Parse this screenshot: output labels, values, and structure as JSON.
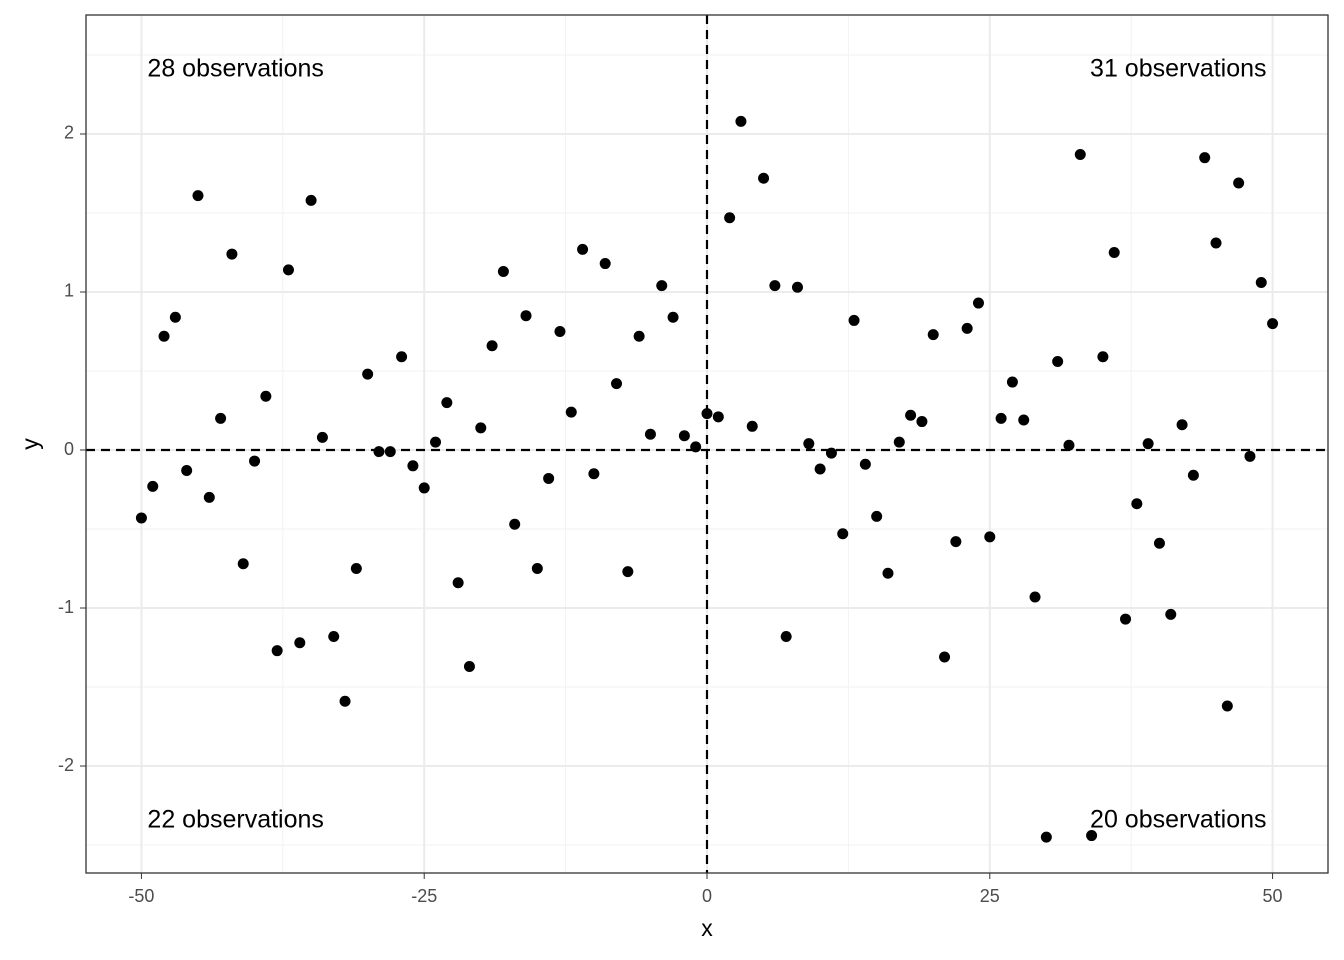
{
  "chart_data": {
    "type": "scatter",
    "x_label": "x",
    "y_label": "y",
    "x": [
      -50,
      -49,
      -48,
      -47,
      -46,
      -45,
      -44,
      -43,
      -42,
      -41,
      -40,
      -39,
      -38,
      -37,
      -36,
      -35,
      -34,
      -33,
      -32,
      -31,
      -30,
      -29,
      -28,
      -27,
      -26,
      -25,
      -24,
      -23,
      -22,
      -21,
      -20,
      -19,
      -18,
      -17,
      -16,
      -15,
      -14,
      -13,
      -12,
      -11,
      -10,
      -9,
      -8,
      -7,
      -6,
      -5,
      -4,
      -3,
      -2,
      -1,
      0,
      1,
      2,
      3,
      4,
      5,
      6,
      7,
      8,
      9,
      10,
      11,
      12,
      13,
      14,
      15,
      16,
      17,
      18,
      19,
      20,
      21,
      22,
      23,
      24,
      25,
      26,
      27,
      28,
      29,
      30,
      31,
      32,
      33,
      34,
      35,
      36,
      37,
      38,
      39,
      40,
      41,
      42,
      43,
      44,
      45,
      46,
      47,
      48,
      49,
      50
    ],
    "values": [
      -0.43,
      -0.23,
      0.72,
      0.84,
      -0.13,
      1.61,
      -0.3,
      0.2,
      1.24,
      -0.72,
      -0.07,
      0.34,
      -1.27,
      1.14,
      -1.22,
      1.58,
      0.08,
      -1.18,
      -1.59,
      -0.75,
      0.48,
      -0.01,
      -0.01,
      0.59,
      -0.1,
      -0.24,
      0.05,
      0.3,
      -0.84,
      -1.37,
      0.14,
      0.66,
      1.13,
      -0.47,
      0.85,
      -0.75,
      -0.18,
      0.75,
      0.24,
      1.27,
      -0.15,
      1.18,
      0.42,
      -0.77,
      0.72,
      0.1,
      1.04,
      0.84,
      0.09,
      0.02,
      0.23,
      0.21,
      1.47,
      2.08,
      0.15,
      1.72,
      1.04,
      -1.18,
      1.03,
      0.04,
      -0.12,
      -0.02,
      -0.53,
      0.82,
      -0.09,
      -0.42,
      -0.78,
      0.05,
      0.22,
      0.18,
      0.73,
      -1.31,
      -0.58,
      0.77,
      0.93,
      -0.55,
      0.2,
      0.43,
      0.19,
      -0.93,
      -2.45,
      0.56,
      0.03,
      1.87,
      -2.44,
      0.59,
      1.25,
      -1.07,
      -0.34,
      0.04,
      -0.59,
      -1.04,
      0.16,
      -0.16,
      1.85,
      1.31,
      -1.62,
      1.69,
      -0.04,
      1.06,
      0.8
    ],
    "color": "#000000",
    "xlim": [
      -54.9,
      54.9
    ],
    "ylim": [
      -2.677,
      2.753
    ],
    "xticks": [
      -50,
      -25,
      0,
      25,
      50
    ],
    "yticks": [
      -2,
      -1,
      0,
      1,
      2
    ],
    "grid": true,
    "minor_grid": true,
    "hline": 0,
    "vline": 0,
    "annotations": [
      {
        "text": "28 observations",
        "corner": "top-left"
      },
      {
        "text": "31 observations",
        "corner": "top-right"
      },
      {
        "text": "22 observations",
        "corner": "bottom-left"
      },
      {
        "text": "20 observations",
        "corner": "bottom-right"
      }
    ]
  }
}
